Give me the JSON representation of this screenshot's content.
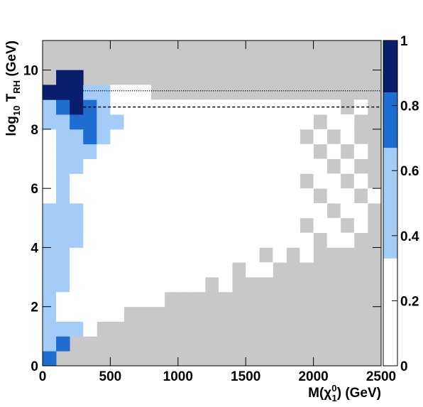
{
  "chart_data": {
    "type": "heatmap",
    "xlabel_parts": [
      {
        "text": "M(χ"
      },
      {
        "text": "0",
        "shift": "sup"
      },
      {
        "text": "1",
        "shift": "sub"
      },
      {
        "text": ") (GeV)"
      }
    ],
    "ylabel_parts": [
      {
        "text": "log"
      },
      {
        "text": "10",
        "shift": "sub"
      },
      {
        "text": " T"
      },
      {
        "text": "RH",
        "shift": "sub"
      },
      {
        "text": " (GeV)"
      }
    ],
    "xlim": [
      0,
      2500
    ],
    "ylim": [
      0,
      11
    ],
    "zlim": [
      0,
      1
    ],
    "xticks": [
      0,
      500,
      1000,
      1500,
      2000,
      2500
    ],
    "yticks": [
      0,
      2,
      4,
      6,
      8,
      10
    ],
    "zticks": [
      0,
      0.2,
      0.4,
      0.6,
      0.8,
      1
    ],
    "xbins": [
      0,
      100,
      200,
      300,
      400,
      500,
      600,
      700,
      800,
      900,
      1000,
      1100,
      1200,
      1300,
      1400,
      1500,
      1600,
      1700,
      1800,
      1900,
      2000,
      2100,
      2200,
      2300,
      2400,
      2500
    ],
    "ybins": [
      0,
      0.5,
      1,
      1.5,
      2,
      2.5,
      3,
      3.5,
      4,
      4.5,
      5,
      5.5,
      6,
      6.5,
      7,
      7.5,
      8,
      8.5,
      9,
      9.5,
      10,
      10.5,
      11
    ],
    "zbands": [
      0,
      0.33,
      0.67,
      0.84,
      1
    ],
    "zcolors": [
      "#ffffff",
      "#a3cdf7",
      "#1e6dd0",
      "#0a1e6e"
    ],
    "missing_color": "#c8c8c8",
    "hlines": [
      {
        "value": 9.3,
        "style": "dotted"
      },
      {
        "value": 8.75,
        "style": "dashed"
      }
    ],
    "z": [
      [
        0.78,
        null,
        null,
        null,
        null,
        null,
        null,
        null,
        null,
        null,
        null,
        null,
        null,
        null,
        null,
        null,
        null,
        null,
        null,
        null,
        null,
        null,
        null,
        null,
        null
      ],
      [
        0.5,
        0.78,
        null,
        null,
        null,
        null,
        null,
        null,
        null,
        null,
        null,
        null,
        null,
        null,
        null,
        null,
        null,
        null,
        null,
        null,
        null,
        null,
        null,
        null,
        null
      ],
      [
        0.5,
        0.5,
        0.5,
        0.15,
        null,
        null,
        null,
        null,
        null,
        null,
        null,
        null,
        null,
        null,
        null,
        null,
        null,
        null,
        null,
        null,
        null,
        null,
        null,
        null,
        null
      ],
      [
        0.5,
        0.15,
        0.15,
        0.15,
        0.15,
        0.15,
        null,
        null,
        null,
        null,
        null,
        null,
        null,
        null,
        null,
        null,
        null,
        null,
        null,
        null,
        null,
        null,
        null,
        null,
        null
      ],
      [
        0.5,
        0.15,
        0.15,
        0.15,
        0.15,
        0.15,
        0.15,
        0.15,
        0.15,
        null,
        null,
        null,
        null,
        null,
        null,
        null,
        null,
        null,
        null,
        null,
        null,
        null,
        null,
        null,
        null
      ],
      [
        0.5,
        0.5,
        0.15,
        0.15,
        0.15,
        0.15,
        0.15,
        0.15,
        0.15,
        0.15,
        0.15,
        0.15,
        null,
        0.15,
        null,
        null,
        null,
        null,
        null,
        null,
        null,
        null,
        null,
        null,
        null
      ],
      [
        0.5,
        0.5,
        0.15,
        0.15,
        0.15,
        0.15,
        0.15,
        0.15,
        0.15,
        0.15,
        0.15,
        0.15,
        0.15,
        0.15,
        null,
        0.15,
        0.15,
        null,
        null,
        null,
        null,
        null,
        null,
        null,
        null
      ],
      [
        0.5,
        0.5,
        0.15,
        0.15,
        0.15,
        0.15,
        0.15,
        0.15,
        0.15,
        0.15,
        0.15,
        0.15,
        0.15,
        0.15,
        0.15,
        0.15,
        null,
        0.15,
        null,
        0.15,
        null,
        null,
        null,
        null,
        null
      ],
      [
        0.5,
        0.5,
        0.5,
        0.15,
        0.15,
        0.15,
        0.15,
        0.15,
        0.15,
        0.15,
        0.15,
        0.15,
        0.15,
        0.15,
        0.15,
        0.15,
        0.15,
        0.15,
        0.15,
        0.15,
        null,
        0.15,
        0.15,
        null,
        null
      ],
      [
        0.5,
        0.5,
        0.5,
        0.15,
        0.15,
        0.15,
        0.15,
        0.15,
        0.15,
        0.15,
        0.15,
        0.15,
        0.15,
        0.15,
        0.15,
        0.15,
        0.15,
        0.15,
        0.15,
        null,
        0.15,
        0.15,
        null,
        0.15,
        null
      ],
      [
        0.5,
        0.5,
        0.5,
        0.15,
        0.15,
        0.15,
        0.15,
        0.15,
        0.15,
        0.15,
        0.15,
        0.15,
        0.15,
        0.15,
        0.15,
        0.15,
        0.15,
        0.15,
        0.15,
        0.15,
        0.15,
        null,
        0.15,
        0.15,
        null
      ],
      [
        0.15,
        0.5,
        0.15,
        0.15,
        0.15,
        0.15,
        0.15,
        0.15,
        0.15,
        0.15,
        0.15,
        0.15,
        0.15,
        0.15,
        0.15,
        0.15,
        0.15,
        0.15,
        0.15,
        0.15,
        null,
        0.15,
        0.15,
        null,
        0.15
      ],
      [
        0.15,
        0.5,
        0.15,
        0.15,
        0.15,
        0.15,
        0.15,
        0.15,
        0.15,
        0.15,
        0.15,
        0.15,
        0.15,
        0.15,
        0.15,
        0.15,
        0.15,
        0.15,
        0.15,
        null,
        0.15,
        0.15,
        null,
        0.15,
        null
      ],
      [
        0.15,
        0.5,
        0.5,
        0.15,
        0.15,
        0.15,
        0.15,
        0.15,
        0.15,
        0.15,
        0.15,
        0.15,
        0.15,
        0.15,
        0.15,
        0.15,
        0.15,
        0.15,
        0.15,
        0.15,
        0.15,
        null,
        0.15,
        null,
        null
      ],
      [
        0.15,
        0.5,
        0.5,
        0.5,
        0.15,
        0.15,
        0.15,
        0.15,
        0.15,
        0.15,
        0.15,
        0.15,
        0.15,
        0.15,
        0.15,
        0.15,
        0.15,
        0.15,
        0.15,
        0.15,
        null,
        0.15,
        null,
        0.15,
        null
      ],
      [
        0.15,
        0.5,
        0.5,
        0.78,
        0.5,
        0.15,
        0.15,
        0.15,
        0.15,
        0.15,
        0.15,
        0.15,
        0.15,
        0.15,
        0.15,
        0.15,
        0.15,
        0.15,
        0.15,
        null,
        0.15,
        null,
        0.15,
        null,
        null
      ],
      [
        0.5,
        0.5,
        0.78,
        0.78,
        0.5,
        0.5,
        0.15,
        0.15,
        0.15,
        0.15,
        0.15,
        0.15,
        0.15,
        0.15,
        0.15,
        0.15,
        0.15,
        0.15,
        0.15,
        0.15,
        null,
        0.15,
        0.15,
        null,
        null
      ],
      [
        0.5,
        0.78,
        0.95,
        0.78,
        0.5,
        0.15,
        0.15,
        0.15,
        0.15,
        0.15,
        0.15,
        0.15,
        0.15,
        0.15,
        0.15,
        0.15,
        0.15,
        0.15,
        0.15,
        0.15,
        0.15,
        0.15,
        null,
        0.15,
        null
      ],
      [
        0.95,
        0.95,
        0.95,
        0.5,
        0.5,
        0.15,
        0.15,
        0.15,
        null,
        null,
        null,
        null,
        null,
        null,
        null,
        null,
        null,
        null,
        null,
        null,
        null,
        null,
        null,
        null,
        null
      ],
      [
        null,
        0.95,
        0.95,
        null,
        null,
        null,
        null,
        null,
        null,
        null,
        null,
        null,
        null,
        null,
        null,
        null,
        null,
        null,
        null,
        null,
        null,
        null,
        null,
        null,
        null
      ],
      [
        null,
        null,
        null,
        null,
        null,
        null,
        null,
        null,
        null,
        null,
        null,
        null,
        null,
        null,
        null,
        null,
        null,
        null,
        null,
        null,
        null,
        null,
        null,
        null,
        null
      ],
      [
        null,
        null,
        null,
        null,
        null,
        null,
        null,
        null,
        null,
        null,
        null,
        null,
        null,
        null,
        null,
        null,
        null,
        null,
        null,
        null,
        null,
        null,
        null,
        null,
        null
      ]
    ]
  }
}
